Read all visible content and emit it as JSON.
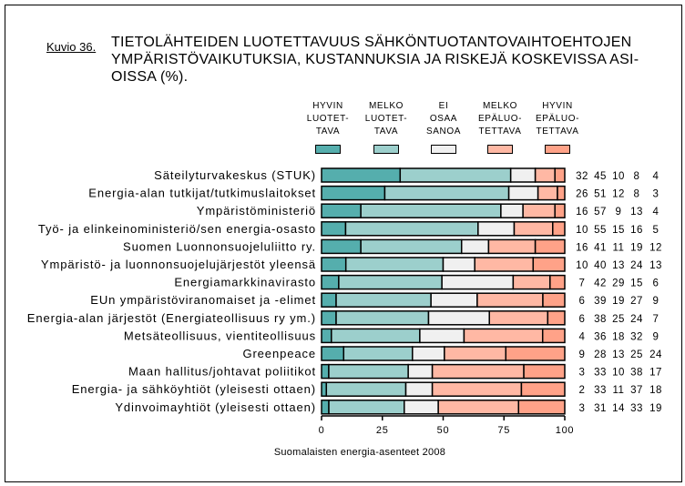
{
  "figure": {
    "number_label": "Kuvio 36.",
    "title_lines": [
      "TIETOLÄHTEIDEN LUOTETTAVUUS SÄHKÖNTUOTANTOVAIHTOEHTOJEN",
      "YMPÄRISTÖVAIKUTUKSIA, KUSTANNUKSIA JA RISKEJÄ KOSKEVISSA ASI-",
      "OISSA (%)."
    ]
  },
  "legend": [
    {
      "lines": [
        "HYVIN",
        "LUOTET-",
        "TAVA"
      ],
      "color": "#55aead"
    },
    {
      "lines": [
        "MELKO",
        "LUOTET-",
        "TAVA"
      ],
      "color": "#9ccfcc"
    },
    {
      "lines": [
        "EI",
        "OSAA",
        "SANOA"
      ],
      "color": "#f0f0f0"
    },
    {
      "lines": [
        "MELKO",
        "EPÄLUO-",
        "TETTAVA"
      ],
      "color": "#ffb8a4"
    },
    {
      "lines": [
        "HYVIN",
        "EPÄLUO-",
        "TETTAVA"
      ],
      "color": "#ffa288"
    }
  ],
  "footer": {
    "source": "Suomalaisten energia-asenteet 2008"
  },
  "chart_data": {
    "type": "bar",
    "orientation": "horizontal",
    "stacked": true,
    "title": "TIETOLÄHTEIDEN LUOTETTAVUUS SÄHKÖNTUOTANTOVAIHTOEHTOJEN YMPÄRISTÖVAIKUTUKSIA, KUSTANNUKSIA JA RISKEJÄ KOSKEVISSA ASIOISSA (%).",
    "xlabel": "",
    "ylabel": "",
    "xlim": [
      0,
      100
    ],
    "xticks": [
      0,
      25,
      50,
      75,
      100
    ],
    "xtick_labels": [
      "0",
      "25",
      "50",
      "75",
      "100"
    ],
    "grid": false,
    "legend_position": "top",
    "value_table_position": "right",
    "source": "Suomalaisten energia-asenteet 2008",
    "categories": [
      "Säteilyturvakeskus (STUK)",
      "Energia-alan tutkijat/tutkimuslaitokset",
      "Ympäristöministeriö",
      "Työ- ja elinkeinoministeriö/sen energia-osasto",
      "Suomen Luonnonsuojeluliitto ry.",
      "Ympäristö- ja luonnonsuojelujärjestöt yleensä",
      "Energiamarkkinavirasto",
      "EUn ympäristöviranomaiset ja -elimet",
      "Energia-alan järjestöt (Energiateollisuus ry ym.)",
      "Metsäteollisuus, vientiteollisuus",
      "Greenpeace",
      "Maan hallitus/johtavat poliitikot",
      "Energia- ja sähköyhtiöt (yleisesti ottaen)",
      "Ydinvoimayhtiöt (yleisesti ottaen)"
    ],
    "series": [
      {
        "name": "Hyvin luotettava",
        "color": "#55aead",
        "values": [
          32,
          26,
          16,
          10,
          16,
          10,
          7,
          6,
          6,
          4,
          9,
          3,
          2,
          3
        ]
      },
      {
        "name": "Melko luotettava",
        "color": "#9ccfcc",
        "values": [
          45,
          51,
          57,
          55,
          41,
          40,
          42,
          39,
          38,
          36,
          28,
          33,
          33,
          31
        ]
      },
      {
        "name": "Ei osaa sanoa",
        "color": "#f0f0f0",
        "values": [
          10,
          12,
          9,
          15,
          11,
          13,
          29,
          19,
          25,
          18,
          13,
          10,
          11,
          14
        ]
      },
      {
        "name": "Melko epäluotettava",
        "color": "#ffb8a4",
        "values": [
          8,
          8,
          13,
          16,
          19,
          24,
          15,
          27,
          24,
          32,
          25,
          38,
          37,
          33
        ]
      },
      {
        "name": "Hyvin epäluotettava",
        "color": "#ffa288",
        "values": [
          4,
          3,
          4,
          5,
          12,
          13,
          6,
          9,
          7,
          9,
          24,
          17,
          18,
          19
        ]
      }
    ]
  }
}
